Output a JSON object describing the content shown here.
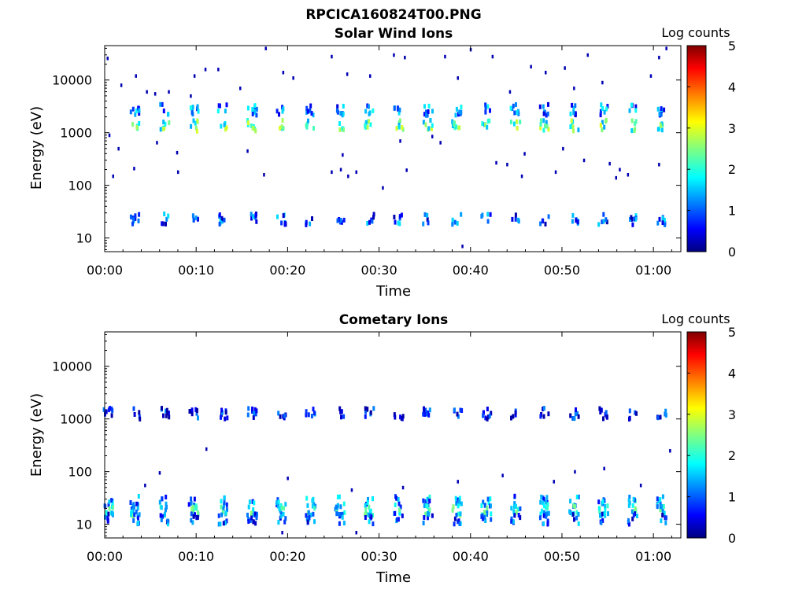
{
  "figure": {
    "title": "RPCICA160824T00.PNG"
  },
  "chart_data": [
    {
      "type": "heatmap",
      "title": "Solar Wind Ions",
      "xlabel": "Time",
      "ylabel": "Energy (eV)",
      "y_scale": "log",
      "xlim_minutes": [
        0,
        63
      ],
      "ylim": [
        5.5,
        45000
      ],
      "x_ticks": [
        "00:00",
        "00:10",
        "00:20",
        "00:30",
        "00:40",
        "00:50",
        "01:00"
      ],
      "y_ticks": [
        "10",
        "100",
        "1000",
        "10000"
      ],
      "colorbar": {
        "label": "Log counts",
        "range": [
          0,
          5
        ],
        "ticks": [
          "0",
          "1",
          "2",
          "3",
          "4",
          "5"
        ]
      },
      "scan_times_minutes": [
        3.2,
        6.4,
        9.6,
        12.8,
        16.0,
        19.2,
        22.4,
        25.6,
        28.8,
        32.0,
        35.2,
        38.4,
        41.6,
        44.8,
        48.0,
        51.2,
        54.4,
        57.6,
        60.8
      ],
      "bands": [
        {
          "energy": 1500,
          "log_counts": 2.2
        },
        {
          "energy": 3000,
          "log_counts": 1.2
        },
        {
          "energy": 25,
          "log_counts": 1.0
        }
      ],
      "scatter_points": [
        [
          0.3,
          26000
        ],
        [
          1.8,
          8000
        ],
        [
          3.4,
          12000
        ],
        [
          4.6,
          6000
        ],
        [
          5.5,
          5500
        ],
        [
          7.0,
          6000
        ],
        [
          9.4,
          5000
        ],
        [
          9.8,
          12000
        ],
        [
          11.0,
          16000
        ],
        [
          12.4,
          16000
        ],
        [
          14.8,
          7000
        ],
        [
          17.6,
          40000
        ],
        [
          19.5,
          14000
        ],
        [
          20.6,
          11000
        ],
        [
          24.8,
          28000
        ],
        [
          26.5,
          13000
        ],
        [
          29.0,
          12000
        ],
        [
          31.6,
          30000
        ],
        [
          32.8,
          27000
        ],
        [
          37.2,
          28000
        ],
        [
          38.6,
          11000
        ],
        [
          40.0,
          38000
        ],
        [
          42.4,
          28000
        ],
        [
          44.3,
          6000
        ],
        [
          46.6,
          18000
        ],
        [
          48.2,
          14000
        ],
        [
          50.3,
          17000
        ],
        [
          51.3,
          7000
        ],
        [
          52.8,
          30000
        ],
        [
          54.4,
          9000
        ],
        [
          59.7,
          12000
        ],
        [
          60.6,
          27000
        ],
        [
          61.4,
          40000
        ],
        [
          0.5,
          900
        ],
        [
          1.5,
          500
        ],
        [
          5.7,
          650
        ],
        [
          7.9,
          420
        ],
        [
          15.6,
          450
        ],
        [
          25.8,
          200
        ],
        [
          26.0,
          380
        ],
        [
          27.5,
          180
        ],
        [
          32.3,
          700
        ],
        [
          35.8,
          850
        ],
        [
          36.7,
          650
        ],
        [
          42.8,
          270
        ],
        [
          45.9,
          400
        ],
        [
          50.1,
          500
        ],
        [
          52.4,
          300
        ],
        [
          55.2,
          260
        ],
        [
          56.3,
          200
        ],
        [
          60.6,
          250
        ],
        [
          0.9,
          150
        ],
        [
          3.2,
          210
        ],
        [
          8.0,
          180
        ],
        [
          17.4,
          160
        ],
        [
          24.8,
          180
        ],
        [
          26.6,
          150
        ],
        [
          30.4,
          90
        ],
        [
          33.0,
          195
        ],
        [
          44.0,
          250
        ],
        [
          45.6,
          150
        ],
        [
          49.3,
          180
        ],
        [
          55.9,
          140
        ],
        [
          57.2,
          160
        ],
        [
          39.1,
          7
        ]
      ]
    },
    {
      "type": "heatmap",
      "title": "Cometary Ions",
      "xlabel": "Time",
      "ylabel": "Energy (eV)",
      "y_scale": "log",
      "xlim_minutes": [
        0,
        63
      ],
      "ylim": [
        5.5,
        45000
      ],
      "x_ticks": [
        "00:00",
        "00:10",
        "00:20",
        "00:30",
        "00:40",
        "00:50",
        "01:00"
      ],
      "y_ticks": [
        "10",
        "100",
        "1000",
        "10000"
      ],
      "colorbar": {
        "label": "Log counts",
        "range": [
          0,
          5
        ],
        "ticks": [
          "0",
          "1",
          "2",
          "3",
          "4",
          "5"
        ]
      },
      "scan_times_minutes": [
        0.3,
        3.2,
        6.4,
        9.6,
        12.8,
        16.0,
        19.2,
        22.4,
        25.6,
        28.8,
        32.0,
        35.2,
        38.4,
        41.6,
        44.8,
        48.0,
        51.2,
        54.4,
        57.6,
        60.8
      ],
      "bands": [
        {
          "energy": 1400,
          "log_counts": 0.6
        },
        {
          "energy": 30,
          "log_counts": 1.3
        },
        {
          "energy": 20,
          "log_counts": 1.8
        },
        {
          "energy": 14,
          "log_counts": 1.0
        }
      ],
      "scatter_points": [
        [
          11.1,
          270
        ],
        [
          61.8,
          250
        ],
        [
          6.0,
          95
        ],
        [
          20.0,
          75
        ],
        [
          38.6,
          65
        ],
        [
          43.5,
          85
        ],
        [
          49.1,
          65
        ],
        [
          51.4,
          100
        ],
        [
          54.6,
          115
        ],
        [
          58.6,
          55
        ],
        [
          4.4,
          55
        ],
        [
          27.0,
          45
        ],
        [
          32.6,
          50
        ],
        [
          19.4,
          7
        ],
        [
          27.5,
          7
        ]
      ]
    }
  ]
}
